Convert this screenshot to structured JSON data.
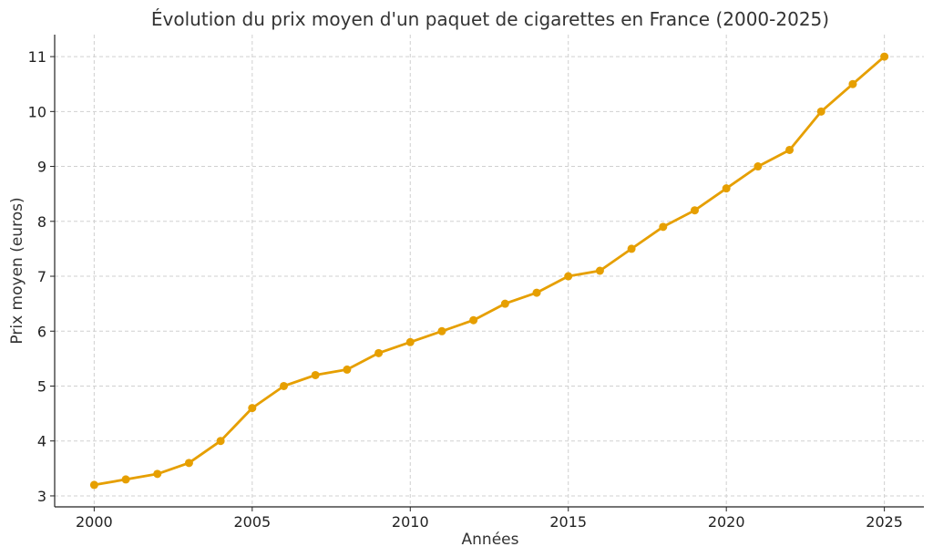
{
  "chart_data": {
    "type": "line",
    "title": "Évolution du prix moyen d'un paquet de cigarettes en France (2000-2025)",
    "xlabel": "Années",
    "ylabel": "Prix moyen (euros)",
    "x": [
      2000,
      2001,
      2002,
      2003,
      2004,
      2005,
      2006,
      2007,
      2008,
      2009,
      2010,
      2011,
      2012,
      2013,
      2014,
      2015,
      2016,
      2017,
      2018,
      2019,
      2020,
      2021,
      2022,
      2023,
      2024,
      2025
    ],
    "series": [
      {
        "values": [
          3.2,
          3.3,
          3.4,
          3.6,
          4.0,
          4.6,
          5.0,
          5.2,
          5.3,
          5.6,
          5.8,
          6.0,
          6.2,
          6.5,
          6.7,
          7.0,
          7.1,
          7.5,
          7.9,
          8.2,
          8.6,
          9.0,
          9.3,
          10.0,
          10.5,
          11.0
        ],
        "color": "#e69f00"
      }
    ],
    "xlim": [
      1998.75,
      2026.25
    ],
    "ylim": [
      2.8,
      11.4
    ],
    "xticks": [
      2000,
      2005,
      2010,
      2015,
      2020,
      2025
    ],
    "yticks": [
      3,
      4,
      5,
      6,
      7,
      8,
      9,
      10,
      11
    ],
    "grid": true,
    "marker": "circle"
  }
}
